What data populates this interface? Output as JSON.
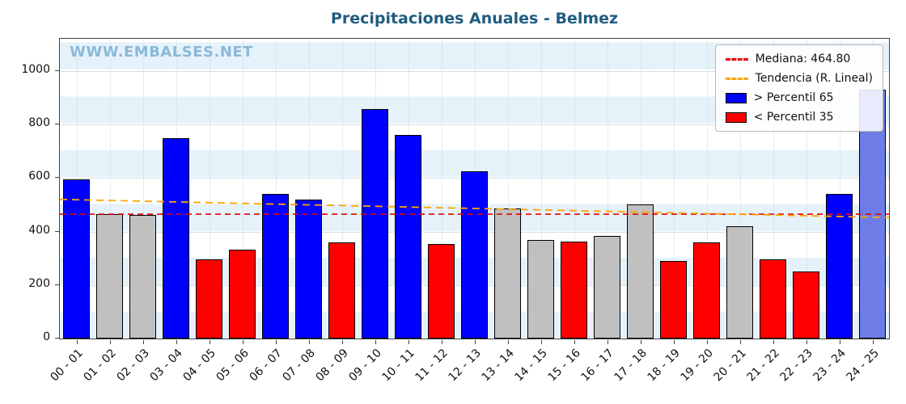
{
  "watermark": "WWW.EMBALSES.NET",
  "chart_data": {
    "type": "bar",
    "title": "Precipitaciones Anuales - Belmez",
    "xlabel": "",
    "ylabel": "",
    "categories": [
      "00 - 01",
      "01 - 02",
      "02 - 03",
      "03 - 04",
      "04 - 05",
      "05 - 06",
      "06 - 07",
      "07 - 08",
      "08 - 09",
      "09 - 10",
      "10 - 11",
      "11 - 12",
      "12 - 13",
      "13 - 14",
      "14 - 15",
      "15 - 16",
      "16 - 17",
      "17 - 18",
      "18 - 19",
      "19 - 20",
      "20 - 21",
      "21 - 22",
      "22 - 23",
      "23 - 24",
      "24 - 25"
    ],
    "values": [
      595,
      465,
      462,
      750,
      297,
      333,
      540,
      518,
      360,
      858,
      762,
      354,
      624,
      486,
      369,
      363,
      384,
      501,
      291,
      360,
      420,
      297,
      250,
      540,
      930
    ],
    "bar_colors": [
      "#0000ff",
      "#c0c0c0",
      "#c0c0c0",
      "#0000ff",
      "#ff0000",
      "#ff0000",
      "#0000ff",
      "#0000ff",
      "#ff0000",
      "#0000ff",
      "#0000ff",
      "#ff0000",
      "#0000ff",
      "#c0c0c0",
      "#c0c0c0",
      "#ff0000",
      "#c0c0c0",
      "#c0c0c0",
      "#ff0000",
      "#ff0000",
      "#c0c0c0",
      "#ff0000",
      "#ff0000",
      "#0000ff",
      "#6d7ce6"
    ],
    "yticks": [
      0,
      200,
      400,
      600,
      800,
      1000
    ],
    "ylim": [
      0,
      1120
    ],
    "grid": true,
    "median": 464.8,
    "trend": {
      "start": 520,
      "end": 452
    },
    "legend_position": "upper right",
    "legend": [
      {
        "type": "line",
        "color": "#e60000",
        "label": "Mediana: 464.80"
      },
      {
        "type": "line",
        "color": "#ffa500",
        "label": "Tendencia (R. Lineal)"
      },
      {
        "type": "patch",
        "color": "#0000ff",
        "label": "> Percentil 65"
      },
      {
        "type": "patch",
        "color": "#ff0000",
        "label": "< Percentil 35"
      }
    ],
    "colors": {
      "above_p65": "#0000ff",
      "below_p35": "#ff0000",
      "between_percentiles": "#c0c0c0",
      "current_year": "#6d7ce6",
      "stripe": "#e6f2fa",
      "title": "#1f5c80",
      "watermark": "#8ab9d9"
    }
  }
}
